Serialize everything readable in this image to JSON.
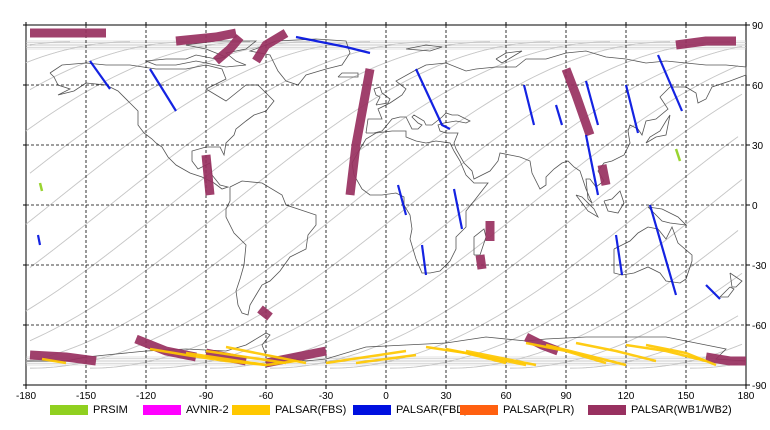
{
  "map": {
    "lon_ticks": [
      "-180",
      "-150",
      "-120",
      "-90",
      "-60",
      "-30",
      "0",
      "30",
      "60",
      "90",
      "120",
      "150",
      "180"
    ],
    "lat_ticks": [
      "90",
      "60",
      "30",
      "0",
      "-30",
      "-60",
      "-90"
    ],
    "lon_range": [
      -180,
      180
    ],
    "lat_range": [
      -90,
      90
    ],
    "grid": "dashed",
    "colors": {
      "coast": "#555555",
      "orbit": "#c8c8c8",
      "grid": "#000000"
    }
  },
  "legend": [
    {
      "label": "PRSIM",
      "color": "#90d020"
    },
    {
      "label": "AVNIR-2",
      "color": "#ff00ff"
    },
    {
      "label": "PALSAR(FBS)",
      "color": "#ffc800"
    },
    {
      "label": "PALSAR(FBD)",
      "color": "#0010e0"
    },
    {
      "label": "PALSAR(PLR)",
      "color": "#ff6010"
    },
    {
      "label": "PALSAR(WB1/WB2)",
      "color": "#983060"
    }
  ],
  "swaths": {
    "wb": [
      [
        [
          -178,
          86
        ],
        [
          -155,
          86
        ],
        [
          -140,
          86
        ]
      ],
      [
        [
          -105,
          82
        ],
        [
          -85,
          84
        ],
        [
          -75,
          86
        ]
      ],
      [
        [
          -73,
          84
        ],
        [
          -78,
          78
        ],
        [
          -85,
          72
        ]
      ],
      [
        [
          -50,
          86
        ],
        [
          -60,
          80
        ],
        [
          -65,
          72
        ]
      ],
      [
        [
          -8,
          68
        ],
        [
          -15,
          30
        ],
        [
          -18,
          5
        ]
      ],
      [
        [
          90,
          68
        ],
        [
          95,
          55
        ],
        [
          102,
          35
        ]
      ],
      [
        [
          108,
          20
        ],
        [
          110,
          10
        ]
      ],
      [
        [
          145,
          80
        ],
        [
          160,
          82
        ],
        [
          175,
          82
        ]
      ],
      [
        [
          -90,
          25
        ],
        [
          -88,
          5
        ]
      ],
      [
        [
          -63,
          -52
        ],
        [
          -58,
          -56
        ]
      ],
      [
        [
          52,
          -8
        ],
        [
          52,
          -18
        ]
      ],
      [
        [
          47,
          -25
        ],
        [
          48,
          -32
        ]
      ],
      [
        [
          -178,
          -75
        ],
        [
          -160,
          -76
        ],
        [
          -145,
          -78
        ]
      ],
      [
        [
          -125,
          -67
        ],
        [
          -110,
          -73
        ],
        [
          -95,
          -76
        ]
      ],
      [
        [
          -90,
          -74
        ],
        [
          -80,
          -76
        ],
        [
          -70,
          -78
        ]
      ],
      [
        [
          -60,
          -79
        ],
        [
          -45,
          -76
        ],
        [
          -30,
          -73
        ]
      ],
      [
        [
          70,
          -66
        ],
        [
          78,
          -70
        ],
        [
          86,
          -73
        ]
      ],
      [
        [
          160,
          -76
        ],
        [
          172,
          -78
        ],
        [
          180,
          -78
        ]
      ]
    ],
    "fbd": [
      [
        [
          -148,
          72
        ],
        [
          -138,
          58
        ]
      ],
      [
        [
          -118,
          68
        ],
        [
          -105,
          47
        ]
      ],
      [
        [
          -45,
          84
        ],
        [
          -20,
          79
        ],
        [
          -8,
          76
        ]
      ],
      [
        [
          15,
          68
        ],
        [
          28,
          40
        ],
        [
          32,
          38
        ]
      ],
      [
        [
          69,
          60
        ],
        [
          74,
          40
        ]
      ],
      [
        [
          85,
          50
        ],
        [
          88,
          40
        ]
      ],
      [
        [
          100,
          62
        ],
        [
          106,
          40
        ]
      ],
      [
        [
          120,
          60
        ],
        [
          126,
          36
        ]
      ],
      [
        [
          136,
          75
        ],
        [
          148,
          47
        ]
      ],
      [
        [
          -174,
          -15
        ],
        [
          -173,
          -20
        ]
      ],
      [
        [
          6,
          10
        ],
        [
          10,
          -5
        ]
      ],
      [
        [
          34,
          8
        ],
        [
          38,
          -12
        ]
      ],
      [
        [
          100,
          35
        ],
        [
          106,
          5
        ]
      ],
      [
        [
          115,
          -15
        ],
        [
          118,
          -35
        ]
      ],
      [
        [
          132,
          0
        ],
        [
          145,
          -45
        ]
      ],
      [
        [
          160,
          -40
        ],
        [
          167,
          -47
        ]
      ],
      [
        [
          18,
          -20
        ],
        [
          20,
          -35
        ]
      ]
    ],
    "fbs": [
      [
        [
          -118,
          -72
        ],
        [
          -100,
          -75
        ],
        [
          -80,
          -78
        ],
        [
          -60,
          -80
        ],
        [
          -45,
          -78
        ]
      ],
      [
        [
          -100,
          -74
        ],
        [
          -80,
          -77
        ],
        [
          -60,
          -80
        ]
      ],
      [
        [
          -90,
          -73
        ],
        [
          -70,
          -76
        ],
        [
          -50,
          -79
        ]
      ],
      [
        [
          -80,
          -71
        ],
        [
          -60,
          -75
        ],
        [
          -40,
          -79
        ]
      ],
      [
        [
          -30,
          -79
        ],
        [
          -10,
          -76
        ],
        [
          10,
          -73
        ]
      ],
      [
        [
          -15,
          -79
        ],
        [
          0,
          -77
        ],
        [
          15,
          -75
        ]
      ],
      [
        [
          20,
          -71
        ],
        [
          40,
          -74
        ],
        [
          60,
          -79
        ]
      ],
      [
        [
          30,
          -72
        ],
        [
          50,
          -76
        ],
        [
          70,
          -80
        ]
      ],
      [
        [
          40,
          -73
        ],
        [
          60,
          -77
        ],
        [
          75,
          -80
        ]
      ],
      [
        [
          70,
          -69
        ],
        [
          90,
          -73
        ],
        [
          110,
          -79
        ]
      ],
      [
        [
          80,
          -70
        ],
        [
          100,
          -75
        ],
        [
          120,
          -80
        ]
      ],
      [
        [
          95,
          -69
        ],
        [
          115,
          -73
        ],
        [
          135,
          -78
        ]
      ],
      [
        [
          120,
          -70
        ],
        [
          140,
          -73
        ],
        [
          160,
          -78
        ]
      ],
      [
        [
          130,
          -70
        ],
        [
          150,
          -74
        ],
        [
          165,
          -80
        ]
      ],
      [
        [
          -172,
          -77
        ],
        [
          -160,
          -79
        ]
      ]
    ],
    "prsim": [
      [
        [
          -173,
          11
        ],
        [
          -172,
          7
        ]
      ],
      [
        [
          145,
          28
        ],
        [
          147,
          22
        ]
      ]
    ]
  }
}
